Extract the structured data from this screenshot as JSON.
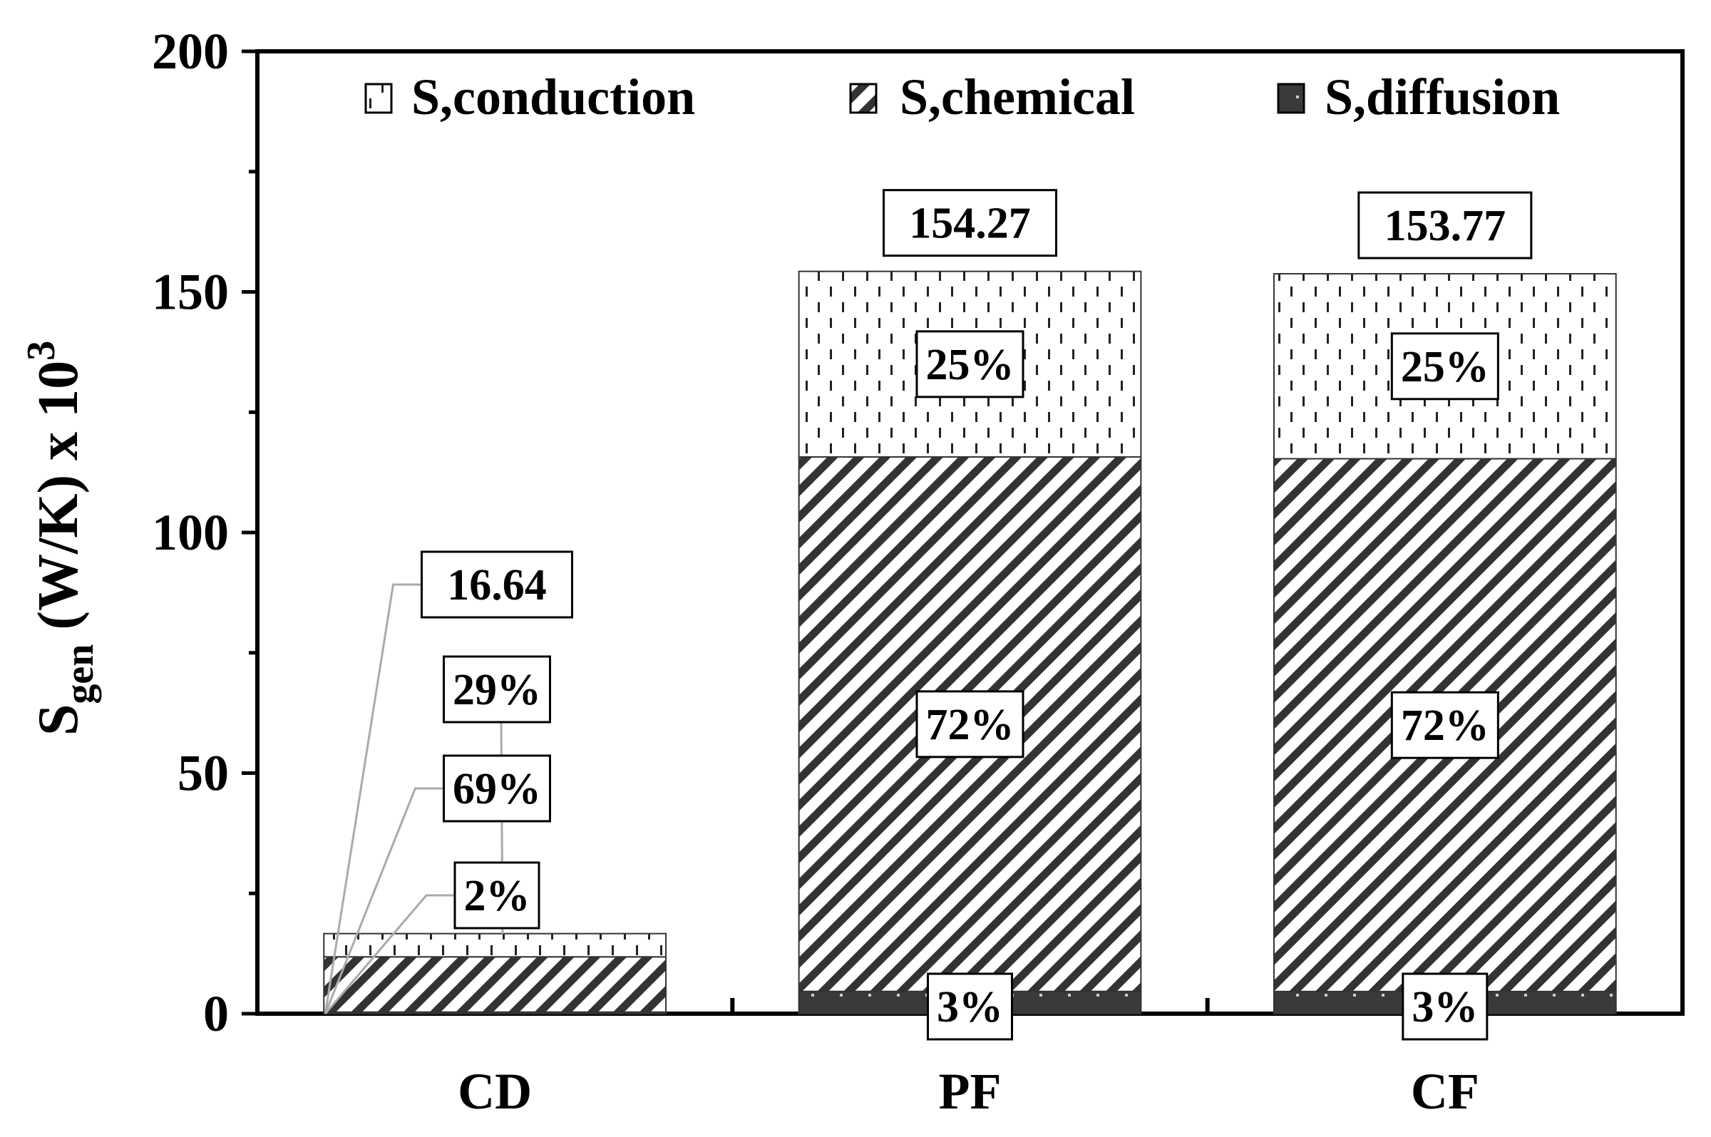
{
  "chart_data": {
    "type": "bar",
    "stacked": true,
    "categories": [
      "CD",
      "PF",
      "CF"
    ],
    "series": [
      {
        "name": "S,diffusion",
        "values": [
          0.33,
          4.63,
          4.61
        ],
        "color": "#3a3a3a",
        "pattern": "dots-dark"
      },
      {
        "name": "S,chemical",
        "values": [
          11.48,
          111.07,
          110.72
        ],
        "color": "#333333",
        "pattern": "diagonal"
      },
      {
        "name": "S,conduction",
        "values": [
          4.83,
          38.57,
          38.44
        ],
        "color": "#ffffff",
        "pattern": "dashes"
      }
    ],
    "totals": [
      "16.64",
      "154.27",
      "153.77"
    ],
    "percent_labels": {
      "CD": {
        "total": "16.64",
        "conduction": "29%",
        "chemical": "69%",
        "diffusion": "2%"
      },
      "PF": {
        "total": "154.27",
        "conduction": "25%",
        "chemical": "72%",
        "diffusion": "3%"
      },
      "CF": {
        "total": "153.77",
        "conduction": "25%",
        "chemical": "72%",
        "diffusion": "3%"
      }
    },
    "ylabel": {
      "main": "S",
      "sub": "gen",
      "unit": " (W/K) x 10",
      "sup": "3"
    },
    "xlabel": "",
    "ylim": [
      0,
      200
    ],
    "yticks": [
      0,
      50,
      100,
      150,
      200
    ],
    "legend": [
      "S,conduction",
      "S,chemical",
      "S,diffusion"
    ],
    "legend_position": "top",
    "grid": false
  }
}
